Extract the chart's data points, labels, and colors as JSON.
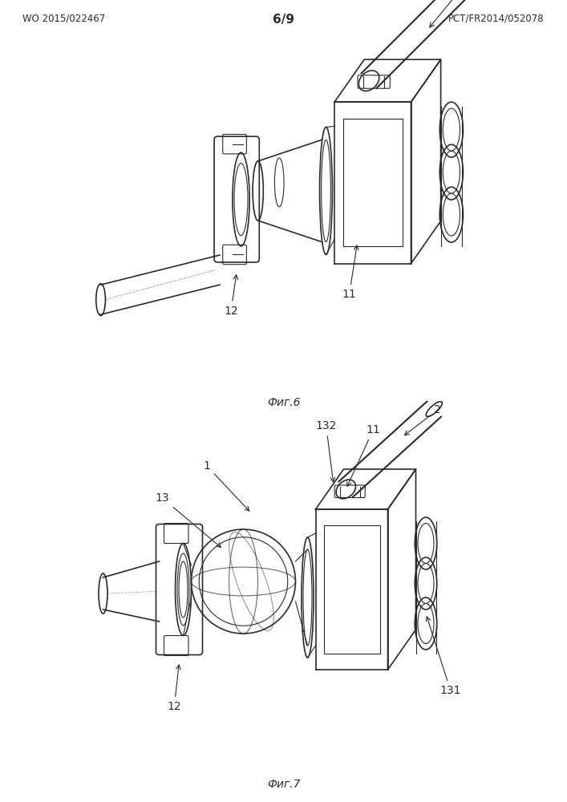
{
  "title_left": "WO 2015/022467",
  "title_center": "6/9",
  "title_right": "PCT/FR2014/052078",
  "fig6_label": "Фиг.6",
  "fig7_label": "Фиг.7",
  "background_color": "#ffffff",
  "line_color": "#2a2a2a",
  "text_color": "#2a2a2a",
  "header_fontsize": 8.5,
  "label_fontsize": 10,
  "annotation_fontsize": 10
}
